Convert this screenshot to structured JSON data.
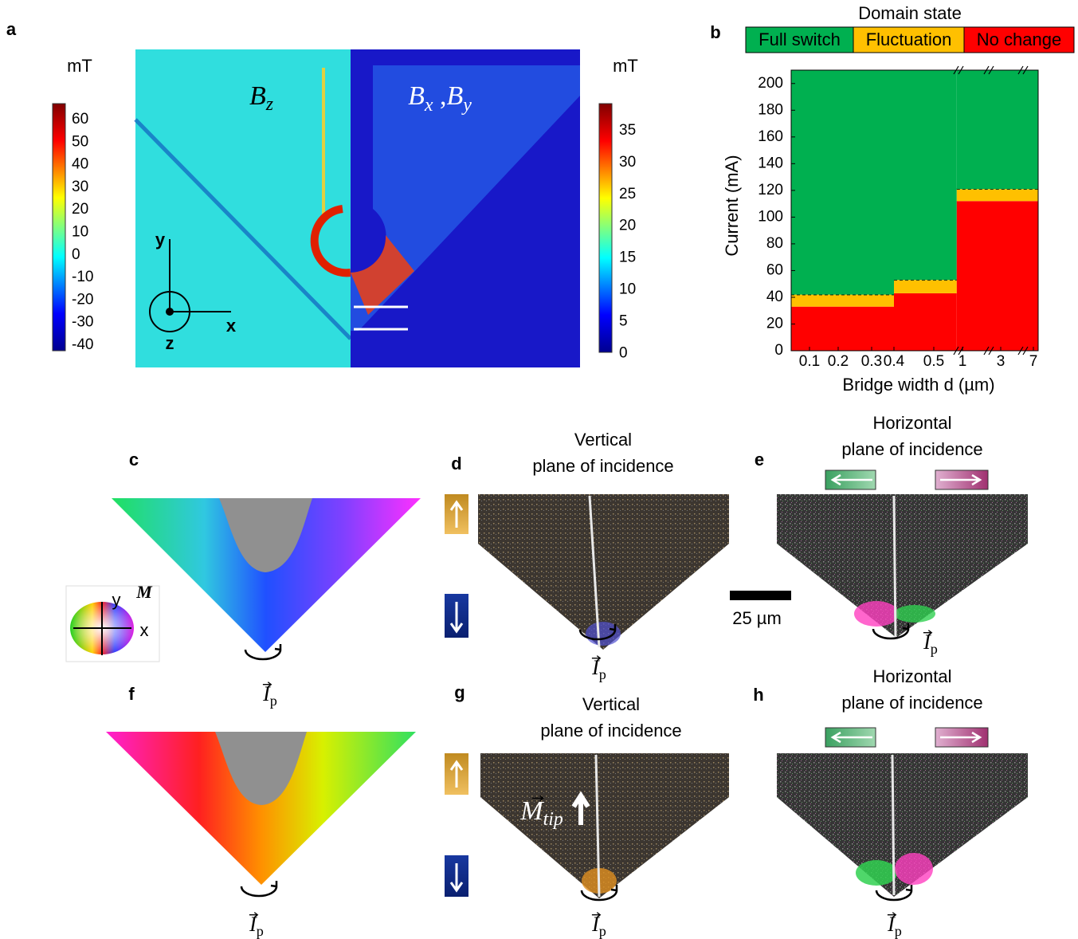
{
  "panels": {
    "a": {
      "label": "a",
      "unit_left": "mT",
      "unit_right": "mT",
      "colorbar_left_ticks": [
        60,
        50,
        40,
        30,
        20,
        10,
        0,
        -10,
        -20,
        -30,
        -40
      ],
      "colorbar_right_ticks": [
        35,
        30,
        25,
        20,
        15,
        10,
        5,
        0
      ],
      "map_left_title": {
        "symbol": "B",
        "sub": "z"
      },
      "map_right_title": [
        {
          "symbol": "B",
          "sub": "x"
        },
        {
          "symbol": "B",
          "sub": "y"
        }
      ],
      "map_right_separator": ",",
      "axis_y": "y",
      "axis_x": "x",
      "axis_z": "z"
    },
    "b": {
      "label": "b"
    },
    "c": {
      "label": "c",
      "current": {
        "symbol": "I",
        "sub": "p"
      },
      "wheel_vector": "M",
      "wheel_y": "y",
      "wheel_x": "x"
    },
    "d": {
      "label": "d",
      "title": [
        "Vertical",
        "plane of incidence"
      ],
      "current": {
        "symbol": "I",
        "sub": "p"
      }
    },
    "e": {
      "label": "e",
      "title": [
        "Horizontal",
        "plane of incidence"
      ],
      "current": {
        "symbol": "I",
        "sub": "p"
      },
      "scale_bar": "25 µm"
    },
    "f": {
      "label": "f",
      "current": {
        "symbol": "I",
        "sub": "p"
      }
    },
    "g": {
      "label": "g",
      "title": [
        "Vertical",
        "plane of incidence"
      ],
      "current": {
        "symbol": "I",
        "sub": "p"
      },
      "tip_label": {
        "symbol": "M",
        "sub": "tip"
      }
    },
    "h": {
      "label": "h",
      "title": [
        "Horizontal",
        "plane of incidence"
      ],
      "current": {
        "symbol": "I",
        "sub": "p"
      }
    }
  },
  "chart_data": {
    "type": "stacked_bar",
    "legend_title": "Domain state",
    "bins": [
      0.05,
      0.4,
      0.9,
      7.5
    ],
    "categories": [
      null,
      null,
      null
    ],
    "series": [
      {
        "name": "Full switch",
        "color": "#00b050",
        "values": [
          168,
          157,
          89
        ]
      },
      {
        "name": "Fluctuation",
        "color": "#ffc000",
        "values": [
          9,
          10,
          9
        ]
      },
      {
        "name": "No change",
        "color": "#ff0000",
        "values": [
          33,
          43,
          112
        ]
      }
    ],
    "xlim": [
      0.05,
      7.5
    ],
    "xticks": [
      0.1,
      0.2,
      0.3,
      0.4,
      0.5,
      1,
      3,
      7
    ],
    "ylim": [
      0,
      210
    ],
    "yticks": [
      0,
      20,
      40,
      60,
      80,
      100,
      120,
      140,
      160,
      180,
      200
    ],
    "xlabel": "Bridge width d (µm)",
    "ylabel": "Current (mA)",
    "boundary_dashed": true
  }
}
